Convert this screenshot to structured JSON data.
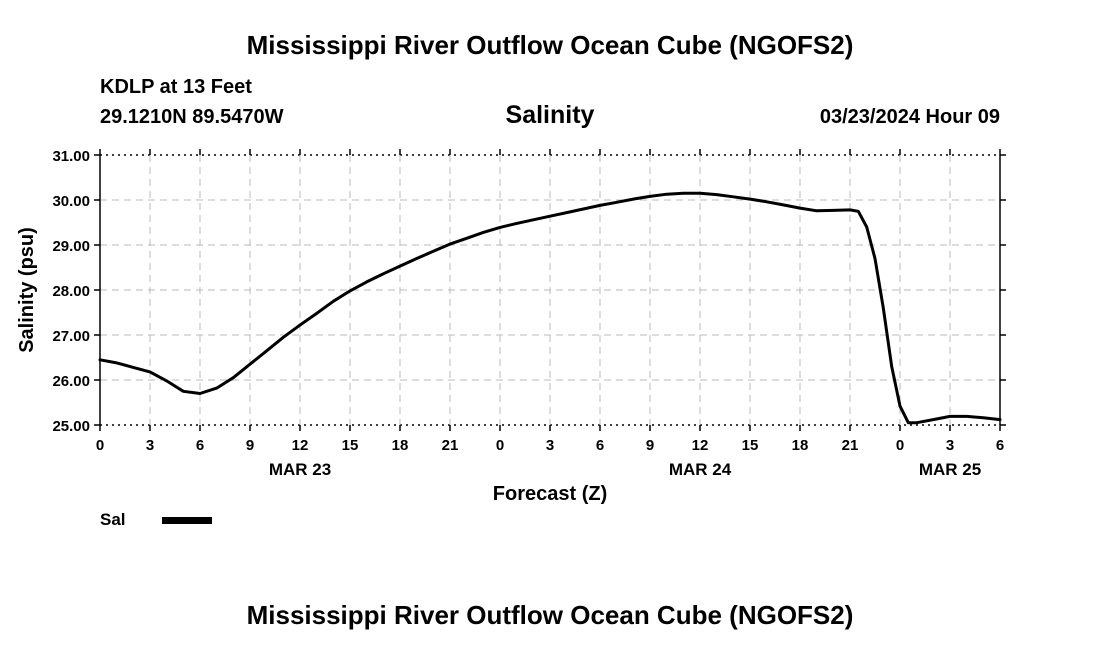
{
  "header": {
    "title": "Mississippi River Outflow Ocean Cube (NGOFS2)",
    "station": "KDLP at 13 Feet",
    "coordinates": "29.1210N  89.5470W",
    "variable": "Salinity",
    "datetime": "03/23/2024 Hour 09"
  },
  "footer": {
    "title": "Mississippi River Outflow Ocean Cube (NGOFS2)"
  },
  "legend": {
    "label": "Sal",
    "color": "#000000"
  },
  "chart_data": {
    "type": "line",
    "title": "Salinity",
    "xlabel": "Forecast (Z)",
    "ylabel": "Salinity (psu)",
    "xlim": [
      0,
      54
    ],
    "ylim": [
      25.0,
      31.0
    ],
    "yticks": [
      "25.00",
      "26.00",
      "27.00",
      "28.00",
      "29.00",
      "30.00",
      "31.00"
    ],
    "ytick_values": [
      25,
      26,
      27,
      28,
      29,
      30,
      31
    ],
    "xticks": [
      "0",
      "3",
      "6",
      "9",
      "12",
      "15",
      "18",
      "21",
      "0",
      "3",
      "6",
      "9",
      "12",
      "15",
      "18",
      "21",
      "0",
      "3",
      "6"
    ],
    "date_labels": [
      {
        "label": "MAR 23",
        "hour": 12
      },
      {
        "label": "MAR 24",
        "hour": 36
      },
      {
        "label": "MAR 25",
        "hour": 51
      }
    ],
    "grid": true,
    "series": [
      {
        "name": "Sal",
        "x": [
          0,
          1,
          2,
          3,
          4,
          5,
          6,
          7,
          8,
          9,
          10,
          11,
          12,
          13,
          14,
          15,
          16,
          17,
          18,
          19,
          20,
          21,
          22,
          23,
          24,
          25,
          26,
          27,
          28,
          29,
          30,
          31,
          32,
          33,
          34,
          35,
          36,
          37,
          38,
          39,
          40,
          41,
          42,
          43,
          44,
          45,
          45.5,
          46,
          46.5,
          47,
          47.5,
          48,
          48.5,
          49,
          50,
          51,
          52,
          53,
          54
        ],
        "values": [
          26.45,
          26.38,
          26.28,
          26.18,
          25.98,
          25.75,
          25.7,
          25.82,
          26.05,
          26.35,
          26.65,
          26.95,
          27.22,
          27.48,
          27.75,
          27.98,
          28.18,
          28.36,
          28.53,
          28.7,
          28.86,
          29.02,
          29.15,
          29.28,
          29.39,
          29.48,
          29.56,
          29.64,
          29.72,
          29.8,
          29.88,
          29.95,
          30.02,
          30.08,
          30.13,
          30.15,
          30.15,
          30.12,
          30.07,
          30.02,
          29.96,
          29.89,
          29.82,
          29.76,
          29.77,
          29.78,
          29.75,
          29.4,
          28.7,
          27.6,
          26.3,
          25.42,
          25.05,
          25.05,
          25.12,
          25.19,
          25.19,
          25.16,
          25.12
        ]
      }
    ]
  }
}
